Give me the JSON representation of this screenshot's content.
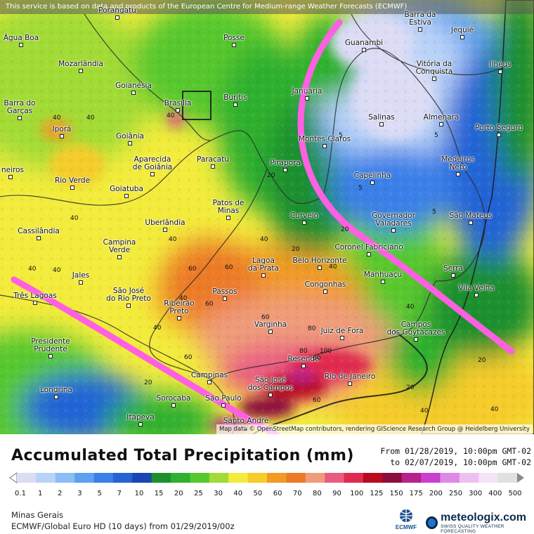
{
  "header": {
    "disclaimer": "This service is based on data and products of the European Centre for Medium-range Weather Forecasts (ECMWF)"
  },
  "map": {
    "attribution": "Map data © OpenStreetMap contributors, rendering GIScience Research Group @ Heidelberg University",
    "cities": [
      {
        "name": "Porangatu",
        "id": "porangatu"
      },
      {
        "name": "Barra da\nEstiva",
        "id": "barra-da-estiva"
      },
      {
        "name": "Água Boa",
        "id": "agua-boa"
      },
      {
        "name": "Posse",
        "id": "posse"
      },
      {
        "name": "Jequié",
        "id": "jequie"
      },
      {
        "name": "Guanambi",
        "id": "guanambi"
      },
      {
        "name": "Mozarlândia",
        "id": "mozarlandia"
      },
      {
        "name": "Vitória da\nConquista",
        "id": "vitoria-da-conquista"
      },
      {
        "name": "Ilhéus",
        "id": "ilheus"
      },
      {
        "name": "Goianésia",
        "id": "goianesia"
      },
      {
        "name": "Barra do\nGarças",
        "id": "barra-do-garcas"
      },
      {
        "name": "Brasília",
        "id": "brasilia"
      },
      {
        "name": "Buritis",
        "id": "buritis"
      },
      {
        "name": "Januária",
        "id": "januaria"
      },
      {
        "name": "Salinas",
        "id": "salinas"
      },
      {
        "name": "Almenara",
        "id": "almenara"
      },
      {
        "name": "Iporá",
        "id": "ipora"
      },
      {
        "name": "Goiânia",
        "id": "goiania"
      },
      {
        "name": "Porto Seguro",
        "id": "porto-seguro"
      },
      {
        "name": "Aparecida\nde Goiânia",
        "id": "aparecida-de-goiania"
      },
      {
        "name": "Montes Claros",
        "id": "montes-claros"
      },
      {
        "name": "Medeiros\nNeto",
        "id": "medeiros-neto"
      },
      {
        "name": "Paracatu",
        "id": "paracatu"
      },
      {
        "name": "Pirapora",
        "id": "pirapora"
      },
      {
        "name": "neiros",
        "id": "neiros"
      },
      {
        "name": "Capelinha",
        "id": "capelinha"
      },
      {
        "name": "Rio Verde",
        "id": "rio-verde"
      },
      {
        "name": "Goiatuba",
        "id": "goiatuba"
      },
      {
        "name": "Patos de\nMinas",
        "id": "patos-de-minas"
      },
      {
        "name": "Governador\nValadares",
        "id": "governador-valadares"
      },
      {
        "name": "São Mateus",
        "id": "sao-mateus"
      },
      {
        "name": "Curvelo",
        "id": "curvelo"
      },
      {
        "name": "Uberlândia",
        "id": "uberlandia"
      },
      {
        "name": "Cassilândia",
        "id": "cassilandia"
      },
      {
        "name": "Campina\nVerde",
        "id": "campina-verde"
      },
      {
        "name": "Coronel Fabriciano",
        "id": "coronel-fabriciano"
      },
      {
        "name": "Lagoa\nda Prata",
        "id": "lagoa-da-prata"
      },
      {
        "name": "Belo Horizonte",
        "id": "belo-horizonte"
      },
      {
        "name": "Serra",
        "id": "serra"
      },
      {
        "name": "Manhuaçu",
        "id": "manhuacu"
      },
      {
        "name": "Jales",
        "id": "jales"
      },
      {
        "name": "São José\ndo Rio Preto",
        "id": "sao-jose-do-rio-preto"
      },
      {
        "name": "Vila Velha",
        "id": "vila-velha"
      },
      {
        "name": "Congonhas",
        "id": "congonhas"
      },
      {
        "name": "Passos",
        "id": "passos"
      },
      {
        "name": "Três Lagoas",
        "id": "tres-lagoas"
      },
      {
        "name": "Ribeirão\nPreto",
        "id": "ribeirao-preto"
      },
      {
        "name": "Varginha",
        "id": "varginha"
      },
      {
        "name": "Campos\ndos Goytacazes",
        "id": "campos-dos-goytacazes"
      },
      {
        "name": "Juiz de Fora",
        "id": "juiz-de-fora"
      },
      {
        "name": "Presidente\nPrudente",
        "id": "presidente-prudente"
      },
      {
        "name": "Resende",
        "id": "resende"
      },
      {
        "name": "Campinas",
        "id": "campinas"
      },
      {
        "name": "São José\ndos Campos",
        "id": "sao-jose-dos-campos"
      },
      {
        "name": "Rio de Janeiro",
        "id": "rio-de-janeiro"
      },
      {
        "name": "Londrina",
        "id": "londrina"
      },
      {
        "name": "Sorocaba",
        "id": "sorocaba"
      },
      {
        "name": "São Paulo",
        "id": "sao-paulo"
      },
      {
        "name": "Itapeva",
        "id": "itapeva"
      },
      {
        "name": "Santo André",
        "id": "santo-andre"
      }
    ],
    "contour_labels": [
      "40",
      "40",
      "40",
      "20",
      "40",
      "40",
      "40",
      "20",
      "5",
      "5",
      "5",
      "5",
      "20",
      "40",
      "40",
      "60",
      "60",
      "60",
      "40",
      "60",
      "40",
      "80",
      "40",
      "80",
      "100",
      "80",
      "60",
      "60",
      "20",
      "20",
      "40",
      "20",
      "40",
      "40"
    ]
  },
  "legend": {
    "title": "Accumulated Total Precipitation (mm)",
    "period_from": "From 01/28/2019, 10:00pm GMT-02",
    "period_to": "to 02/07/2019, 10:00pm GMT-02",
    "ticks": [
      "0.1",
      "1",
      "2",
      "3",
      "5",
      "7",
      "10",
      "15",
      "20",
      "25",
      "30",
      "40",
      "50",
      "60",
      "70",
      "80",
      "90",
      "100",
      "125",
      "150",
      "175",
      "200",
      "250",
      "300",
      "400",
      "500"
    ],
    "colors": [
      "#dcdcf5",
      "#b9d3f7",
      "#8cbcf5",
      "#5ea1f0",
      "#3b80e8",
      "#2463d6",
      "#1846b4",
      "#1f8f2e",
      "#2fb02f",
      "#56c82f",
      "#a2db35",
      "#f3ec3c",
      "#f5cc2a",
      "#f29a24",
      "#ec7a28",
      "#ef9c7a",
      "#e95c82",
      "#e02a4e",
      "#b80b1e",
      "#8a0e3c",
      "#b8208c",
      "#c93fd0",
      "#dd8ae6",
      "#eec0f0",
      "#f6e2f8",
      "#e0e0e0"
    ]
  },
  "footer": {
    "region": "Minas Gerais",
    "model": "ECMWF/Global Euro HD (10 days) from 01/29/2019/00z",
    "ecmwf_label": "ECMWF",
    "brand": "meteologix.com",
    "brand_tag": "SWISS QUALITY WEATHER FORECASTING"
  }
}
